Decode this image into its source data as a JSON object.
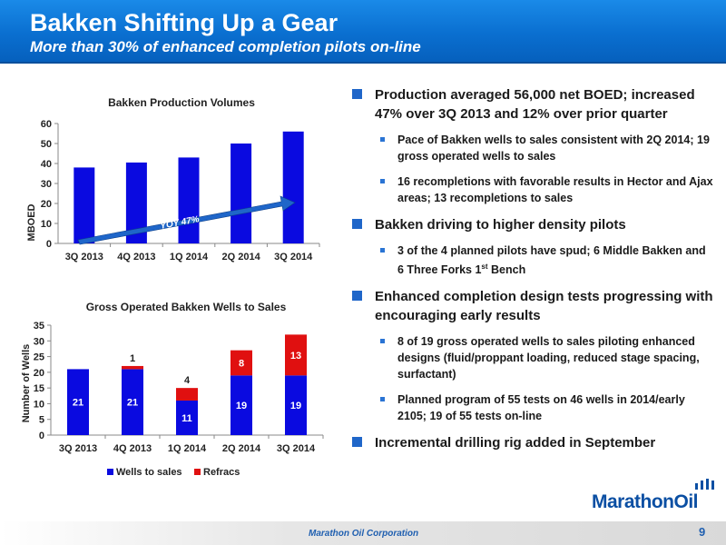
{
  "header": {
    "title": "Bakken Shifting Up a Gear",
    "subtitle": "More than 30% of enhanced completion pilots on-line"
  },
  "chart_data": [
    {
      "type": "bar",
      "title": "Bakken Production Volumes",
      "ylabel": "MBOED",
      "xlabel": "",
      "categories": [
        "3Q 2013",
        "4Q 2013",
        "1Q 2014",
        "2Q 2014",
        "3Q 2014"
      ],
      "values": [
        38,
        40.5,
        43,
        50,
        56
      ],
      "ylim": [
        0,
        60
      ],
      "yticks": [
        0,
        10,
        20,
        30,
        40,
        50,
        60
      ],
      "annotation": "YOY 47%",
      "grid": false,
      "colors": {
        "bar": "#0a0ae0",
        "arrow": "#1f66c9"
      }
    },
    {
      "type": "bar",
      "stacked": true,
      "title": "Gross Operated Bakken Wells to Sales",
      "ylabel": "Number of Wells",
      "xlabel": "",
      "categories": [
        "3Q 2013",
        "4Q 2013",
        "1Q 2014",
        "2Q 2014",
        "3Q 2014"
      ],
      "series": [
        {
          "name": "Wells to sales",
          "values": [
            21,
            21,
            11,
            19,
            19
          ],
          "labels": [
            "21",
            "21",
            "11",
            "19",
            "19"
          ]
        },
        {
          "name": "Refracs",
          "values": [
            0,
            1,
            4,
            8,
            13
          ],
          "labels": [
            "",
            "1",
            "4",
            "8",
            "13"
          ]
        }
      ],
      "ylim": [
        0,
        35
      ],
      "yticks": [
        0,
        5,
        10,
        15,
        20,
        25,
        30,
        35
      ],
      "legend_position": "bottom",
      "grid": false,
      "colors": {
        "Wells to sales": "#0a0ae0",
        "Refracs": "#e01010"
      }
    }
  ],
  "bullets": [
    {
      "text": "Production averaged 56,000 net BOED; increased 47% over 3Q 2013 and 12% over prior quarter",
      "sub": [
        {
          "text": "Pace of Bakken wells to sales consistent with 2Q 2014; 19 gross operated wells to sales"
        },
        {
          "text": "16 recompletions with favorable results in Hector and Ajax areas; 13 recompletions to sales"
        }
      ]
    },
    {
      "text": "Bakken driving to higher density pilots",
      "sub": [
        {
          "text_before": "3 of the 4 planned pilots have spud; 6 Middle Bakken and 6 Three Forks 1",
          "sup": "st",
          "text_after": " Bench"
        }
      ]
    },
    {
      "text": "Enhanced completion design tests progressing with encouraging early results",
      "sub": [
        {
          "text": "8 of 19 gross operated wells to sales piloting enhanced designs (fluid/proppant loading, reduced stage spacing, surfactant)"
        },
        {
          "text": "Planned program of 55 tests on 46 wells in 2014/early 2105; 19 of 55 tests on-line"
        }
      ]
    },
    {
      "text": "Incremental drilling rig added in September",
      "sub": []
    }
  ],
  "logo": {
    "text": "MarathonOil"
  },
  "footer": {
    "company": "Marathon Oil Corporation",
    "page": "9"
  }
}
